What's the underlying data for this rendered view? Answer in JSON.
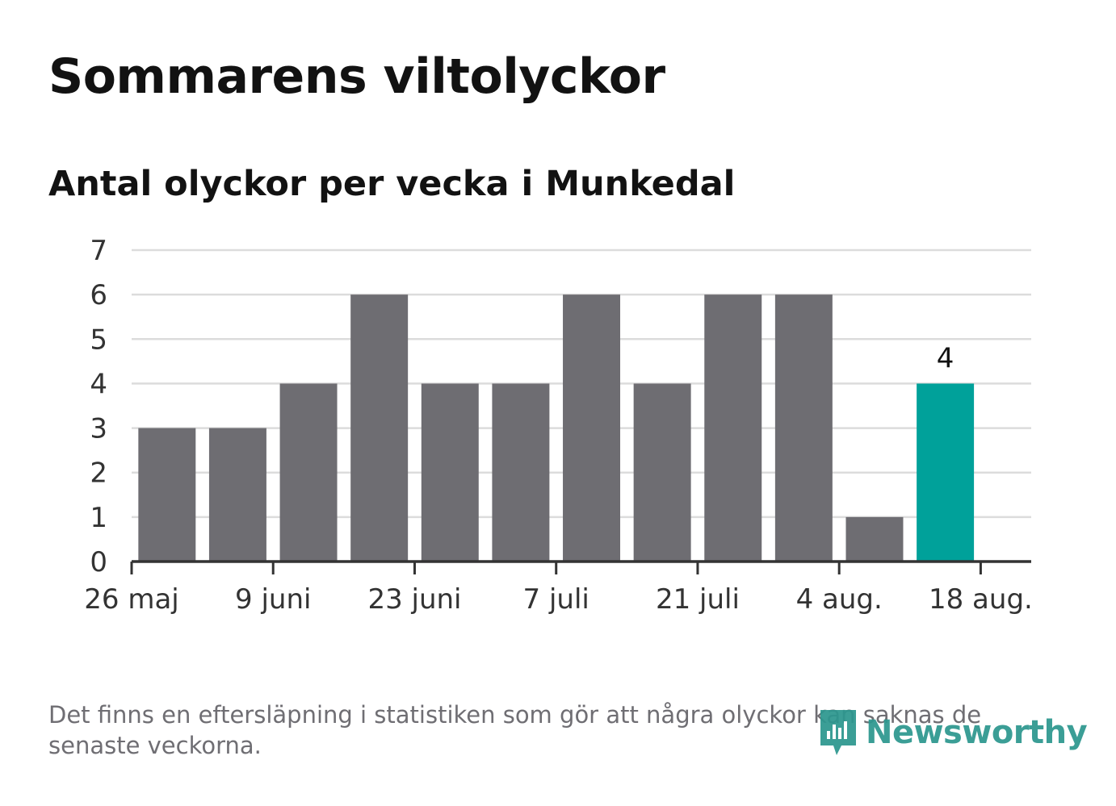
{
  "title": "Sommarens viltolyckor",
  "subtitle": "Antal olyckor per vecka i Munkedal",
  "footnote": "Det finns en eftersläpning i statistiken som gör att några olyckor kan saknas de senaste veckorna.",
  "brand": {
    "name": "Newsworthy",
    "icon": "newsworthy-logo-icon",
    "color": "#2d978f"
  },
  "colors": {
    "bar": "#6e6d72",
    "highlight": "#00a19a",
    "grid": "#dcdcdc",
    "axis": "#333333"
  },
  "chart_data": {
    "type": "bar",
    "x": [
      "2024-06-02",
      "2024-06-09",
      "2024-06-16",
      "2024-06-23",
      "2024-06-30",
      "2024-07-07",
      "2024-07-14",
      "2024-07-21",
      "2024-07-28",
      "2024-08-04",
      "2024-08-11",
      "2024-08-18"
    ],
    "values": [
      3,
      3,
      4,
      6,
      4,
      4,
      6,
      4,
      6,
      6,
      1,
      4
    ],
    "highlight_index": 11,
    "data_labels": [
      {
        "index": 11,
        "text": "4"
      }
    ],
    "ylim": [
      0,
      7
    ],
    "yticks": [
      0,
      1,
      2,
      3,
      4,
      5,
      6,
      7
    ],
    "xlim": [
      "2024-05-26",
      "2024-08-23"
    ],
    "xticks": [
      {
        "date": "2024-05-26",
        "label": "26 maj"
      },
      {
        "date": "2024-06-09",
        "label": "9 juni"
      },
      {
        "date": "2024-06-23",
        "label": "23 juni"
      },
      {
        "date": "2024-07-07",
        "label": "7 juli"
      },
      {
        "date": "2024-07-21",
        "label": "21 juli"
      },
      {
        "date": "2024-08-04",
        "label": "4 aug."
      },
      {
        "date": "2024-08-18",
        "label": "18 aug."
      }
    ],
    "grid": true,
    "legend": "none"
  }
}
